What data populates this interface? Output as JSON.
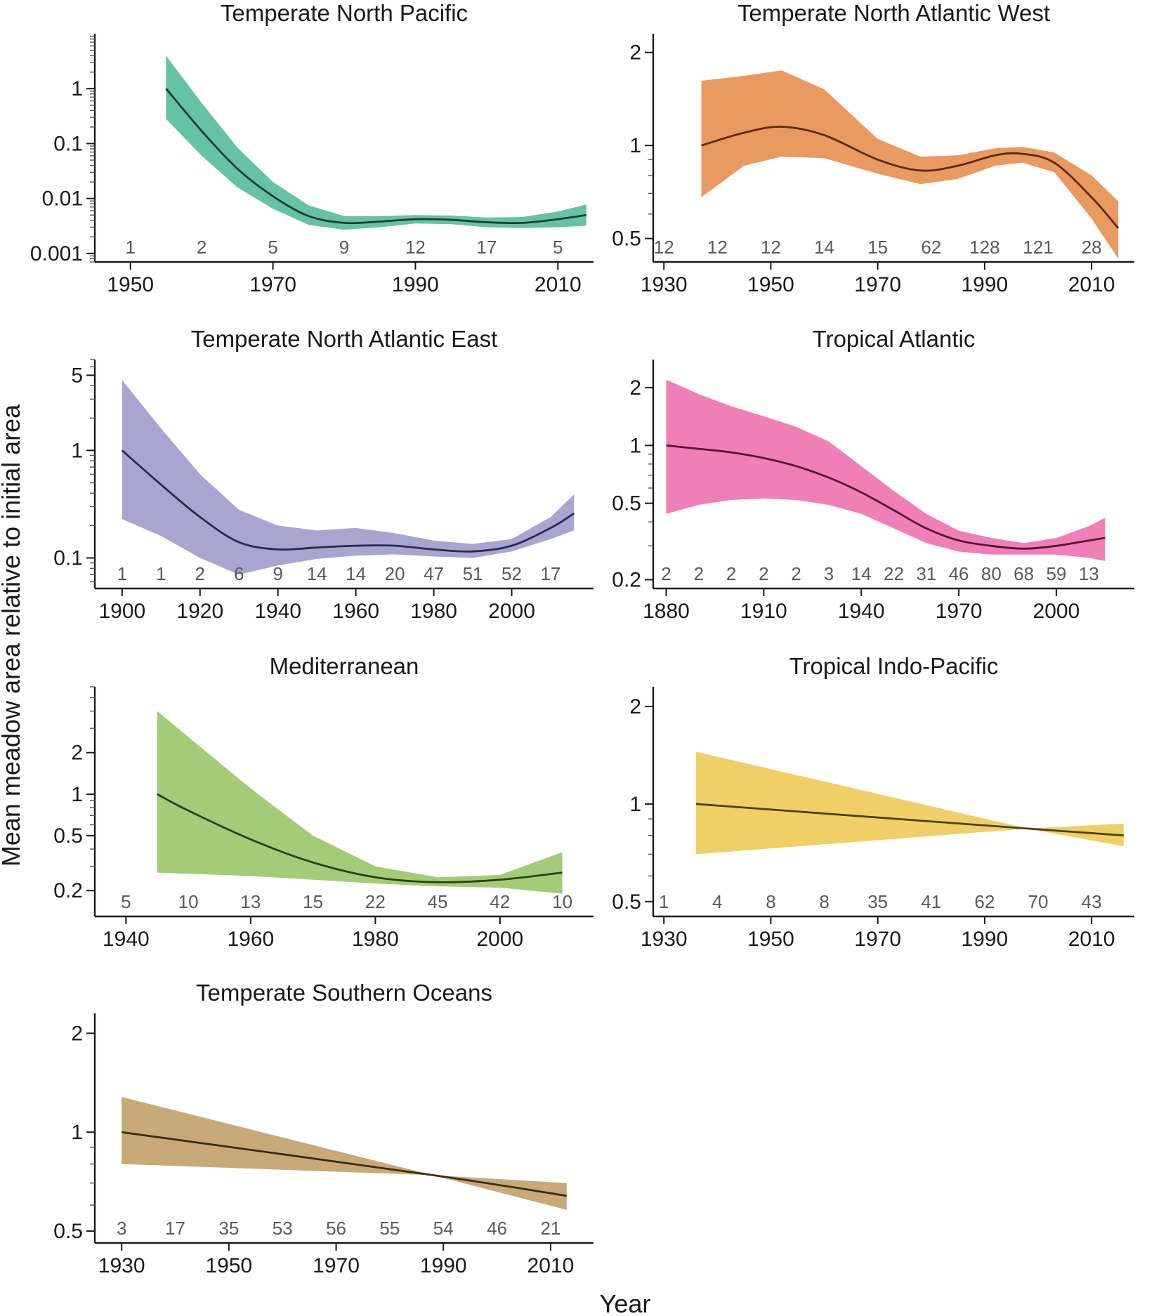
{
  "figure": {
    "ylabel": "Mean meadow area relative to initial area",
    "xlabel": "Year"
  },
  "chart_data": [
    {
      "type": "line",
      "title": "Temperate North Pacific",
      "color": "#66c2a5",
      "line_color": "#1d3d33",
      "y_scale": "log",
      "ylim": [
        0.0007,
        10
      ],
      "xlim": [
        1945,
        2015
      ],
      "yticks": [
        0.001,
        0.01,
        0.1,
        1
      ],
      "ytick_labels": [
        "0.001",
        "0.01",
        "0.1",
        "1"
      ],
      "xticks": [
        1950,
        1970,
        1990,
        2010
      ],
      "xtick_labels": [
        "1950",
        "1970",
        "1990",
        "2010"
      ],
      "series": [
        {
          "x": [
            1955,
            1960,
            1965,
            1970,
            1975,
            1980,
            1985,
            1990,
            1995,
            2000,
            2005,
            2010,
            2014
          ],
          "y": [
            1.0,
            0.17,
            0.035,
            0.011,
            0.0048,
            0.0036,
            0.0038,
            0.0042,
            0.0041,
            0.0037,
            0.0036,
            0.0042,
            0.005
          ],
          "lower": [
            0.28,
            0.06,
            0.016,
            0.0065,
            0.0033,
            0.0027,
            0.003,
            0.0035,
            0.0034,
            0.003,
            0.0029,
            0.003,
            0.0032
          ],
          "upper": [
            4.0,
            0.55,
            0.085,
            0.02,
            0.0075,
            0.0048,
            0.0048,
            0.005,
            0.0049,
            0.0045,
            0.0046,
            0.0058,
            0.0078
          ]
        }
      ],
      "counts": [
        {
          "x": 1950,
          "label": "1"
        },
        {
          "x": 1960,
          "label": "2"
        },
        {
          "x": 1970,
          "label": "5"
        },
        {
          "x": 1980,
          "label": "9"
        },
        {
          "x": 1990,
          "label": "12"
        },
        {
          "x": 2000,
          "label": "17"
        },
        {
          "x": 2010,
          "label": "5"
        }
      ]
    },
    {
      "type": "line",
      "title": "Temperate North Atlantic West",
      "color": "#e89a60",
      "line_color": "#5e2a10",
      "y_scale": "log",
      "ylim": [
        0.42,
        2.3
      ],
      "xlim": [
        1928,
        2018
      ],
      "yticks": [
        0.5,
        1,
        2
      ],
      "ytick_labels": [
        "0.5",
        "1",
        "2"
      ],
      "xticks": [
        1930,
        1950,
        1970,
        1990,
        2010
      ],
      "xtick_labels": [
        "1930",
        "1950",
        "1970",
        "1990",
        "2010"
      ],
      "series": [
        {
          "x": [
            1937,
            1945,
            1952,
            1960,
            1970,
            1978,
            1985,
            1992,
            1997,
            2003,
            2010,
            2015
          ],
          "y": [
            1.0,
            1.1,
            1.15,
            1.08,
            0.9,
            0.83,
            0.86,
            0.93,
            0.94,
            0.88,
            0.68,
            0.54
          ],
          "lower": [
            0.68,
            0.86,
            0.92,
            0.91,
            0.81,
            0.75,
            0.78,
            0.86,
            0.88,
            0.82,
            0.58,
            0.43
          ],
          "upper": [
            1.62,
            1.68,
            1.75,
            1.52,
            1.05,
            0.92,
            0.93,
            0.98,
            0.99,
            0.95,
            0.8,
            0.66
          ]
        }
      ],
      "counts": [
        {
          "x": 1930,
          "label": "12"
        },
        {
          "x": 1940,
          "label": "12"
        },
        {
          "x": 1950,
          "label": "12"
        },
        {
          "x": 1960,
          "label": "14"
        },
        {
          "x": 1970,
          "label": "15"
        },
        {
          "x": 1980,
          "label": "62"
        },
        {
          "x": 1990,
          "label": "128"
        },
        {
          "x": 2000,
          "label": "121"
        },
        {
          "x": 2010,
          "label": "28"
        }
      ]
    },
    {
      "type": "line",
      "title": "Temperate North Atlantic East",
      "color": "#a8a5d1",
      "line_color": "#2a2a4a",
      "y_scale": "log",
      "ylim": [
        0.052,
        7
      ],
      "xlim": [
        1893,
        2021
      ],
      "yticks": [
        0.1,
        1,
        5
      ],
      "ytick_labels": [
        "0.1",
        "1",
        "5"
      ],
      "xticks": [
        1900,
        1920,
        1940,
        1960,
        1980,
        2000
      ],
      "xtick_labels": [
        "1900",
        "1920",
        "1940",
        "1960",
        "1980",
        "2000"
      ],
      "series": [
        {
          "x": [
            1900,
            1910,
            1920,
            1930,
            1940,
            1950,
            1960,
            1970,
            1980,
            1990,
            2000,
            2010,
            2016
          ],
          "y": [
            1.0,
            0.48,
            0.24,
            0.14,
            0.12,
            0.125,
            0.13,
            0.13,
            0.12,
            0.115,
            0.13,
            0.19,
            0.26
          ],
          "lower": [
            0.23,
            0.16,
            0.1,
            0.07,
            0.085,
            0.098,
            0.105,
            0.108,
            0.103,
            0.1,
            0.115,
            0.15,
            0.18
          ],
          "upper": [
            4.5,
            1.6,
            0.6,
            0.28,
            0.2,
            0.18,
            0.19,
            0.17,
            0.145,
            0.135,
            0.15,
            0.24,
            0.39
          ]
        }
      ],
      "counts": [
        {
          "x": 1900,
          "label": "1"
        },
        {
          "x": 1910,
          "label": "1"
        },
        {
          "x": 1920,
          "label": "2"
        },
        {
          "x": 1930,
          "label": "6"
        },
        {
          "x": 1940,
          "label": "9"
        },
        {
          "x": 1950,
          "label": "14"
        },
        {
          "x": 1960,
          "label": "14"
        },
        {
          "x": 1970,
          "label": "20"
        },
        {
          "x": 1980,
          "label": "47"
        },
        {
          "x": 1990,
          "label": "51"
        },
        {
          "x": 2000,
          "label": "52"
        },
        {
          "x": 2010,
          "label": "17"
        }
      ]
    },
    {
      "type": "line",
      "title": "Tropical Atlantic",
      "color": "#f07fb8",
      "line_color": "#5a1436",
      "y_scale": "log",
      "ylim": [
        0.18,
        2.8
      ],
      "xlim": [
        1876,
        2024
      ],
      "yticks": [
        0.2,
        0.5,
        1,
        2
      ],
      "ytick_labels": [
        "0.2",
        "0.5",
        "1",
        "2"
      ],
      "xticks": [
        1880,
        1910,
        1940,
        1970,
        2000
      ],
      "xtick_labels": [
        "1880",
        "1910",
        "1940",
        "1970",
        "2000"
      ],
      "series": [
        {
          "x": [
            1880,
            1890,
            1900,
            1910,
            1920,
            1930,
            1940,
            1950,
            1960,
            1970,
            1980,
            1990,
            2000,
            2010,
            2015
          ],
          "y": [
            1.0,
            0.96,
            0.92,
            0.86,
            0.78,
            0.68,
            0.57,
            0.46,
            0.37,
            0.32,
            0.3,
            0.29,
            0.3,
            0.32,
            0.33
          ],
          "lower": [
            0.44,
            0.49,
            0.52,
            0.53,
            0.52,
            0.49,
            0.44,
            0.37,
            0.31,
            0.28,
            0.27,
            0.27,
            0.27,
            0.26,
            0.25
          ],
          "upper": [
            2.2,
            1.85,
            1.6,
            1.42,
            1.25,
            1.05,
            0.78,
            0.58,
            0.44,
            0.36,
            0.33,
            0.31,
            0.33,
            0.38,
            0.42
          ]
        }
      ],
      "counts": [
        {
          "x": 1880,
          "label": "2"
        },
        {
          "x": 1890,
          "label": "2"
        },
        {
          "x": 1900,
          "label": "2"
        },
        {
          "x": 1910,
          "label": "2"
        },
        {
          "x": 1920,
          "label": "2"
        },
        {
          "x": 1930,
          "label": "3"
        },
        {
          "x": 1940,
          "label": "14"
        },
        {
          "x": 1950,
          "label": "22"
        },
        {
          "x": 1960,
          "label": "31"
        },
        {
          "x": 1970,
          "label": "46"
        },
        {
          "x": 1980,
          "label": "80"
        },
        {
          "x": 1990,
          "label": "68"
        },
        {
          "x": 2000,
          "label": "59"
        },
        {
          "x": 2010,
          "label": "13"
        }
      ]
    },
    {
      "type": "line",
      "title": "Mediterranean",
      "color": "#a4cc78",
      "line_color": "#2b4214",
      "y_scale": "log",
      "ylim": [
        0.13,
        6
      ],
      "xlim": [
        1935,
        2015
      ],
      "yticks": [
        0.2,
        0.5,
        1,
        2
      ],
      "ytick_labels": [
        "0.2",
        "0.5",
        "1",
        "2"
      ],
      "xticks": [
        1940,
        1960,
        1980,
        2000
      ],
      "xtick_labels": [
        "1940",
        "1960",
        "1980",
        "2000"
      ],
      "series": [
        {
          "x": [
            1945,
            1950,
            1960,
            1970,
            1980,
            1990,
            2000,
            2010
          ],
          "y": [
            1.0,
            0.76,
            0.47,
            0.32,
            0.25,
            0.23,
            0.24,
            0.27
          ],
          "lower": [
            0.27,
            0.265,
            0.255,
            0.24,
            0.225,
            0.215,
            0.21,
            0.19
          ],
          "upper": [
            4.0,
            2.6,
            1.1,
            0.5,
            0.3,
            0.25,
            0.26,
            0.38
          ]
        }
      ],
      "counts": [
        {
          "x": 1940,
          "label": "5"
        },
        {
          "x": 1950,
          "label": "10"
        },
        {
          "x": 1960,
          "label": "13"
        },
        {
          "x": 1970,
          "label": "15"
        },
        {
          "x": 1980,
          "label": "22"
        },
        {
          "x": 1990,
          "label": "45"
        },
        {
          "x": 2000,
          "label": "42"
        },
        {
          "x": 2010,
          "label": "10"
        }
      ]
    },
    {
      "type": "line",
      "title": "Tropical Indo-Pacific",
      "color": "#f0cf66",
      "line_color": "#4f3f10",
      "y_scale": "log",
      "ylim": [
        0.45,
        2.3
      ],
      "xlim": [
        1928,
        2018
      ],
      "yticks": [
        0.5,
        1,
        2
      ],
      "ytick_labels": [
        "0.5",
        "1",
        "2"
      ],
      "xticks": [
        1930,
        1950,
        1970,
        1990,
        2010
      ],
      "xtick_labels": [
        "1930",
        "1950",
        "1970",
        "1990",
        "2010"
      ],
      "series": [
        {
          "x": [
            1936,
            1998,
            2016
          ],
          "y": [
            1.0,
            0.84,
            0.8
          ],
          "lower": [
            0.7,
            0.84,
            0.74
          ],
          "upper": [
            1.45,
            0.84,
            0.87
          ]
        }
      ],
      "counts": [
        {
          "x": 1930,
          "label": "1"
        },
        {
          "x": 1940,
          "label": "4"
        },
        {
          "x": 1950,
          "label": "8"
        },
        {
          "x": 1960,
          "label": "8"
        },
        {
          "x": 1970,
          "label": "35"
        },
        {
          "x": 1980,
          "label": "41"
        },
        {
          "x": 1990,
          "label": "62"
        },
        {
          "x": 2000,
          "label": "70"
        },
        {
          "x": 2010,
          "label": "43"
        }
      ]
    },
    {
      "type": "line",
      "title": "Temperate Southern Oceans",
      "color": "#c8aa78",
      "line_color": "#3d2c10",
      "y_scale": "log",
      "ylim": [
        0.46,
        2.3
      ],
      "xlim": [
        1925,
        2018
      ],
      "yticks": [
        0.5,
        1,
        2
      ],
      "ytick_labels": [
        "0.5",
        "1",
        "2"
      ],
      "xticks": [
        1930,
        1950,
        1970,
        1990,
        2010
      ],
      "xtick_labels": [
        "1930",
        "1950",
        "1970",
        "1990",
        "2010"
      ],
      "series": [
        {
          "x": [
            1930,
            1988,
            2013
          ],
          "y": [
            1.0,
            0.74,
            0.64
          ],
          "lower": [
            0.8,
            0.74,
            0.58
          ],
          "upper": [
            1.28,
            0.74,
            0.7
          ]
        }
      ],
      "counts": [
        {
          "x": 1930,
          "label": "3"
        },
        {
          "x": 1940,
          "label": "17"
        },
        {
          "x": 1950,
          "label": "35"
        },
        {
          "x": 1960,
          "label": "53"
        },
        {
          "x": 1970,
          "label": "56"
        },
        {
          "x": 1980,
          "label": "55"
        },
        {
          "x": 1990,
          "label": "54"
        },
        {
          "x": 2000,
          "label": "46"
        },
        {
          "x": 2010,
          "label": "21"
        }
      ]
    }
  ]
}
